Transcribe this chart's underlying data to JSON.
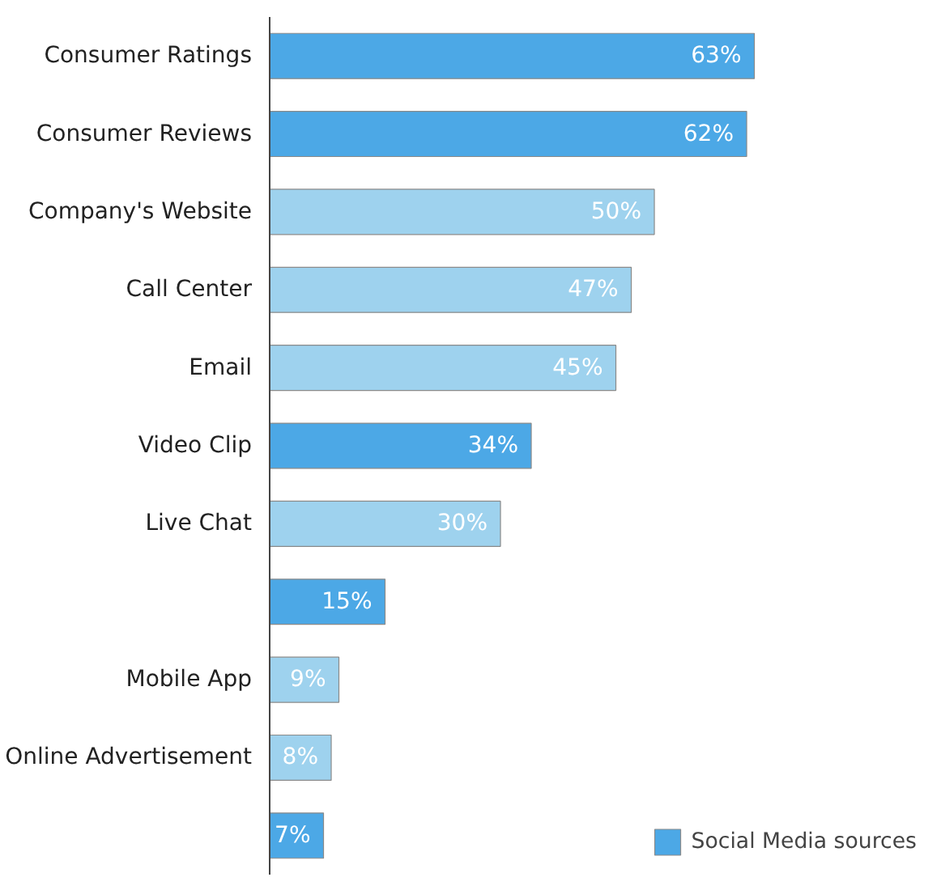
{
  "chart_data": {
    "type": "bar",
    "orientation": "horizontal",
    "legend": "bottom right",
    "categories": [
      "Consumer Ratings",
      "Consumer Reviews",
      "Company's Website",
      "Call Center",
      "Email",
      "Video Clip",
      "Live Chat",
      null,
      "Mobile App",
      "Online Advertisement",
      null
    ],
    "series": [
      {
        "name": "Social Media sources",
        "color": "#4ca8e6",
        "values": [
          63,
          62,
          null,
          null,
          null,
          34,
          null,
          15,
          null,
          null,
          7
        ],
        "value_labels": [
          "63%",
          "62%",
          null,
          null,
          null,
          "34%",
          null,
          "15%",
          null,
          null,
          "7%"
        ]
      },
      {
        "color": "#9ed2ee",
        "values": [
          null,
          null,
          50,
          47,
          45,
          null,
          30,
          null,
          9,
          8,
          null
        ],
        "value_labels": [
          null,
          null,
          "50%",
          "47%",
          "45%",
          null,
          "30%",
          null,
          "9%",
          "8%",
          null
        ]
      }
    ]
  }
}
